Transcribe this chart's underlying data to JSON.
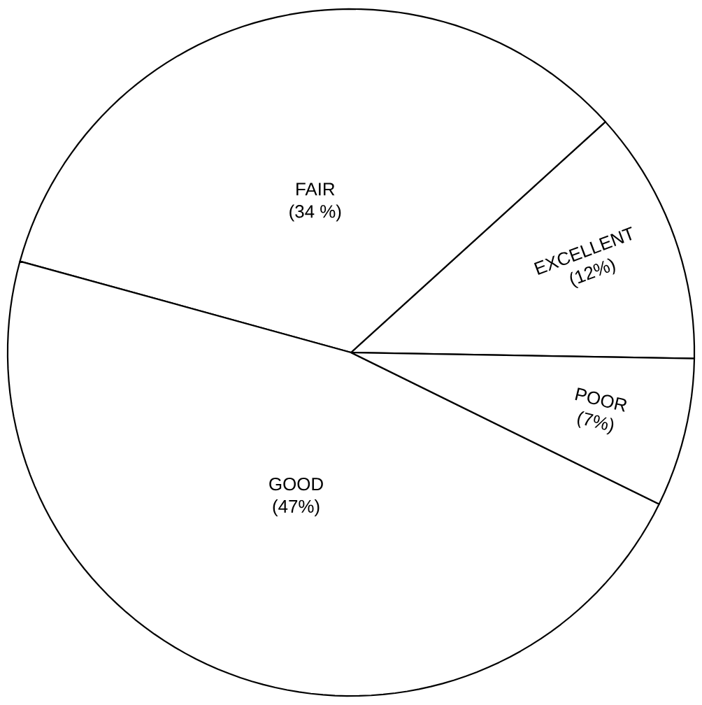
{
  "chart_data": {
    "type": "pie",
    "categories": [
      "EXCELLENT",
      "FAIR",
      "GOOD",
      "POOR"
    ],
    "values": [
      12,
      34,
      47,
      7
    ],
    "value_labels": [
      "(12%)",
      "(34 %)",
      "(47%)",
      "(7%)"
    ],
    "colors": [
      "#ffffff",
      "#ffffff",
      "#ffffff",
      "#ffffff"
    ]
  }
}
